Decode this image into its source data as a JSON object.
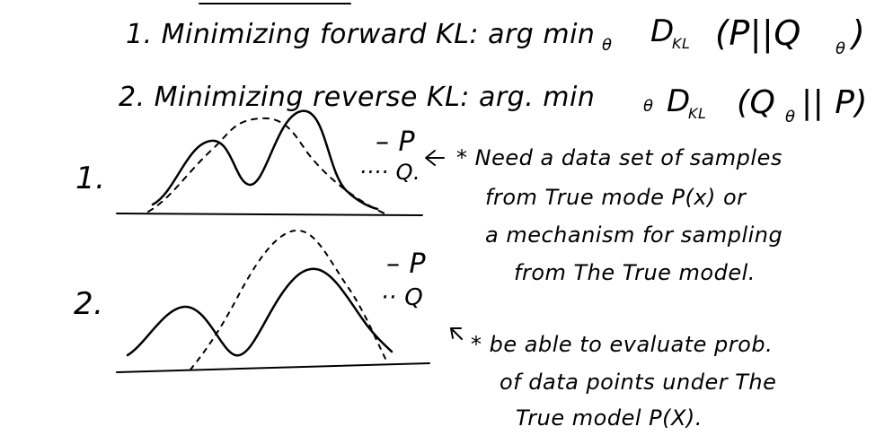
{
  "notes": {
    "line1": "1. Minimizing forward KL: arg min",
    "line1_sub": "θ",
    "line1_dkl": "D",
    "line1_dkl_sub": "KL",
    "line1_args": "(P||Q",
    "line1_args_sub": "θ",
    "line1_close": ")",
    "line2": "2. Minimizing reverse KL: arg. min",
    "line2_sub": "θ",
    "line2_dkl": "D",
    "line2_dkl_sub": "KL",
    "line2_args": "(Q",
    "line2_args_sub": "θ",
    "line2_args_rest": "|| P)"
  },
  "plot1": {
    "number": "1.",
    "legend_p": "– P",
    "legend_q": "···· Q.",
    "note_lines": [
      "* Need a data set of samples",
      "from True mode P(x) or",
      "a mechanism for sampling",
      "from The True model."
    ]
  },
  "plot2": {
    "number": "2.",
    "legend_p": "– P",
    "legend_q": "·· Q",
    "note_lines": [
      "* be able to evaluate prob.",
      "of data points under The",
      "True model P(X)."
    ]
  },
  "colors": {
    "ink": "#000000",
    "paper": "#ffffff"
  },
  "icons": [
    "arrow-left-icon",
    "arrow-up-left-icon"
  ]
}
